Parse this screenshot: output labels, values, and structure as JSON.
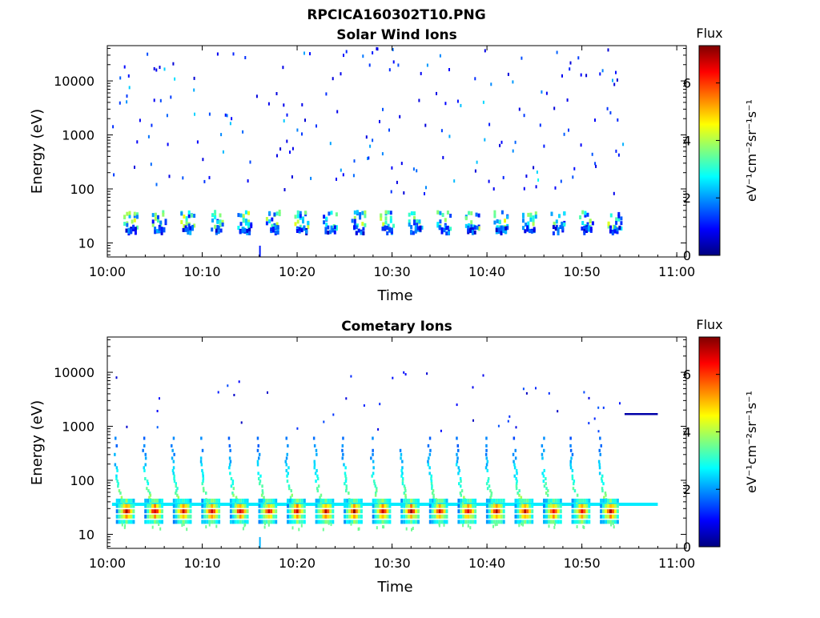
{
  "figure": {
    "title": "RPCICA160302T10.PNG"
  },
  "colormap": {
    "name": "jet",
    "stops": [
      "#00007f",
      "#0000ff",
      "#007fff",
      "#00ffff",
      "#7fff7f",
      "#ffff00",
      "#ff7f00",
      "#ff0000",
      "#7f0000"
    ]
  },
  "chart_data": [
    {
      "type": "heatmap",
      "title": "Solar Wind Ions",
      "xlabel": "Time",
      "ylabel": "Energy (eV)",
      "x_tick_labels": [
        "10:00",
        "10:10",
        "10:20",
        "10:30",
        "10:40",
        "10:50",
        "11:00"
      ],
      "x_range_min": [
        0,
        61
      ],
      "y_scale": "log",
      "y_tick_labels": [
        "10",
        "100",
        "1000",
        "10000"
      ],
      "y_range_eV": [
        5.5,
        45000
      ],
      "colorbar": {
        "title": "Flux",
        "label": "eV⁻¹cm⁻²sr⁻¹s⁻¹",
        "range": [
          0,
          7.3
        ],
        "tick_labels": [
          "0",
          "2",
          "4",
          "6"
        ]
      },
      "sweep_start_min": [
        2.5,
        5.5,
        8.5,
        11.5,
        14.5,
        17.5,
        20.5,
        23.5,
        26.5,
        29.5,
        32.5,
        35.5,
        38.5,
        41.5,
        44.5,
        47.5,
        50.5,
        53.5
      ],
      "bands": [
        {
          "e_min": 18,
          "e_max": 38,
          "level": 3.2,
          "width_min": 1.6
        },
        {
          "e_min": 15,
          "e_max": 20,
          "level": 1.6,
          "width_min": 1.2
        }
      ],
      "scatter_energy_range_eV": [
        80,
        40000
      ],
      "scatter_level_range": [
        0.6,
        3.0
      ],
      "scatter_count": 190,
      "data_end_min": 54.5
    },
    {
      "type": "heatmap",
      "title": "Cometary Ions",
      "xlabel": "Time",
      "ylabel": "Energy (eV)",
      "x_tick_labels": [
        "10:00",
        "10:10",
        "10:20",
        "10:30",
        "10:40",
        "10:50",
        "11:00"
      ],
      "x_range_min": [
        0,
        61
      ],
      "y_scale": "log",
      "y_tick_labels": [
        "10",
        "100",
        "1000",
        "10000"
      ],
      "y_range_eV": [
        5.5,
        45000
      ],
      "colorbar": {
        "title": "Flux",
        "label": "eV⁻¹cm⁻²sr⁻¹s⁻¹",
        "range": [
          0,
          7.3
        ],
        "tick_labels": [
          "0",
          "2",
          "4",
          "6"
        ]
      },
      "sweep_start_min": [
        0.5,
        3.5,
        6.5,
        9.5,
        12.5,
        15.5,
        18.5,
        21.5,
        24.5,
        27.5,
        30.5,
        33.5,
        36.5,
        39.5,
        42.5,
        45.5,
        48.5,
        51.5
      ],
      "core_band": {
        "e_min": 17,
        "e_max": 42,
        "level_peak": 6.2,
        "width_min": 2.0
      },
      "continuous_line": {
        "energy": 36,
        "level": 2.6,
        "t_start": 0.5,
        "t_end": 58
      },
      "streak": {
        "energy": 1700,
        "level": 0.3,
        "t_start": 54.5,
        "t_end": 58
      },
      "sweep_energy_range_eV": [
        40,
        600
      ],
      "scatter_count": 45
    }
  ]
}
